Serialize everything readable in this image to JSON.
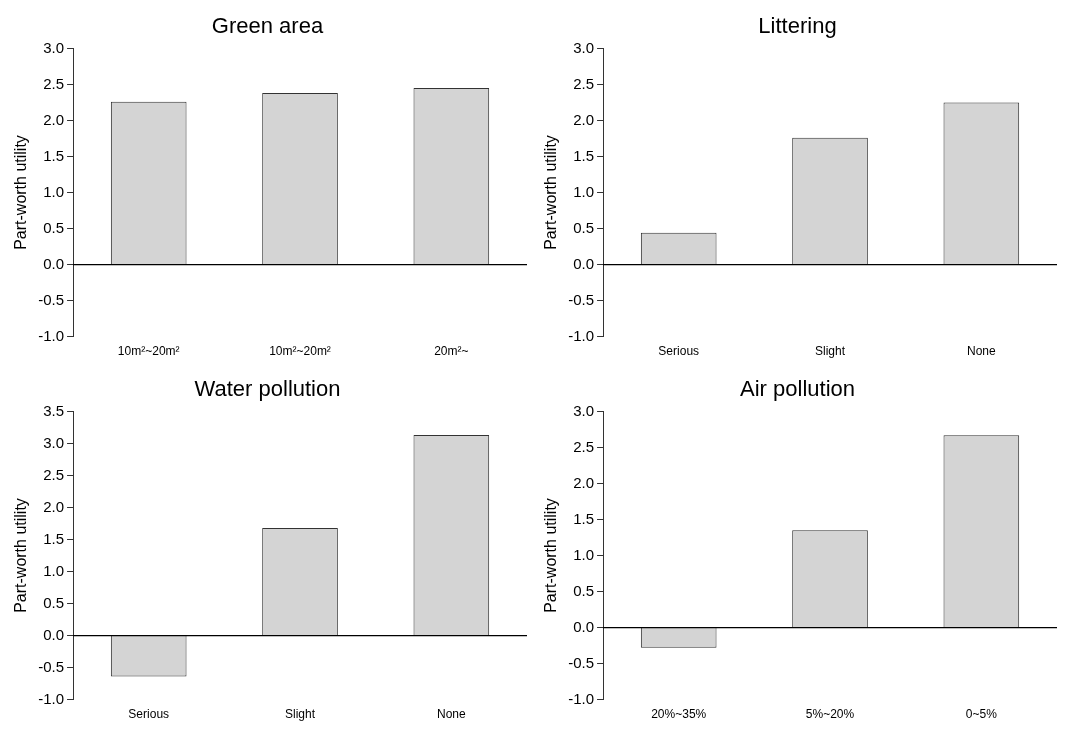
{
  "chart_data": [
    {
      "type": "bar",
      "title": "Green area",
      "ylabel": "Part-worth utility",
      "categories": [
        "10m²~20m²",
        "10m²~20m²",
        "20m²~"
      ],
      "values": [
        2.26,
        2.38,
        2.45
      ],
      "color": "#d4d4d4",
      "ylim": [
        -1,
        3
      ],
      "yticks": [
        {
          "value": -1,
          "label": "-1.0"
        },
        {
          "value": -0.5,
          "label": "-0.5"
        },
        {
          "value": 0,
          "label": "0.0"
        },
        {
          "value": 0.5,
          "label": "0.5"
        },
        {
          "value": 1,
          "label": "1.0"
        },
        {
          "value": 1.5,
          "label": "1.5"
        },
        {
          "value": 2,
          "label": "2.0"
        },
        {
          "value": 2.5,
          "label": "2.5"
        },
        {
          "value": 3,
          "label": "3.0"
        }
      ]
    },
    {
      "type": "bar",
      "title": "Littering",
      "ylabel": "Part-worth utility",
      "categories": [
        "Serious",
        "Slight",
        "None"
      ],
      "values": [
        0.44,
        1.76,
        2.25
      ],
      "color": "#d4d4d4",
      "ylim": [
        -1,
        3
      ],
      "yticks": [
        {
          "value": -1,
          "label": "-1.0"
        },
        {
          "value": -0.5,
          "label": "-0.5"
        },
        {
          "value": 0,
          "label": "0.0"
        },
        {
          "value": 0.5,
          "label": "0.5"
        },
        {
          "value": 1,
          "label": "1.0"
        },
        {
          "value": 1.5,
          "label": "1.5"
        },
        {
          "value": 2,
          "label": "2.0"
        },
        {
          "value": 2.5,
          "label": "2.5"
        },
        {
          "value": 3,
          "label": "3.0"
        }
      ]
    },
    {
      "type": "bar",
      "title": "Water pollution",
      "ylabel": "Part-worth utility",
      "categories": [
        "Serious",
        "Slight",
        "None"
      ],
      "values": [
        -0.64,
        1.68,
        3.13
      ],
      "color": "#d4d4d4",
      "ylim": [
        -1,
        3.5
      ],
      "yticks": [
        {
          "value": -1,
          "label": "-1.0"
        },
        {
          "value": -0.5,
          "label": "-0.5"
        },
        {
          "value": 0,
          "label": "0.0"
        },
        {
          "value": 0.5,
          "label": "0.5"
        },
        {
          "value": 1,
          "label": "1.0"
        },
        {
          "value": 1.5,
          "label": "1.5"
        },
        {
          "value": 2,
          "label": "2.0"
        },
        {
          "value": 2.5,
          "label": "2.5"
        },
        {
          "value": 3,
          "label": "3.0"
        },
        {
          "value": 3.5,
          "label": "3.5"
        }
      ]
    },
    {
      "type": "bar",
      "title": "Air pollution",
      "ylabel": "Part-worth utility",
      "categories": [
        "20%~35%",
        "5%~20%",
        "0~5%"
      ],
      "values": [
        -0.28,
        1.35,
        2.67
      ],
      "color": "#d4d4d4",
      "ylim": [
        -1,
        3
      ],
      "yticks": [
        {
          "value": -1,
          "label": "-1.0"
        },
        {
          "value": -0.5,
          "label": "-0.5"
        },
        {
          "value": 0,
          "label": "0.0"
        },
        {
          "value": 0.5,
          "label": "0.5"
        },
        {
          "value": 1,
          "label": "1.0"
        },
        {
          "value": 1.5,
          "label": "1.5"
        },
        {
          "value": 2,
          "label": "2.0"
        },
        {
          "value": 2.5,
          "label": "2.5"
        },
        {
          "value": 3,
          "label": "3.0"
        }
      ]
    }
  ]
}
